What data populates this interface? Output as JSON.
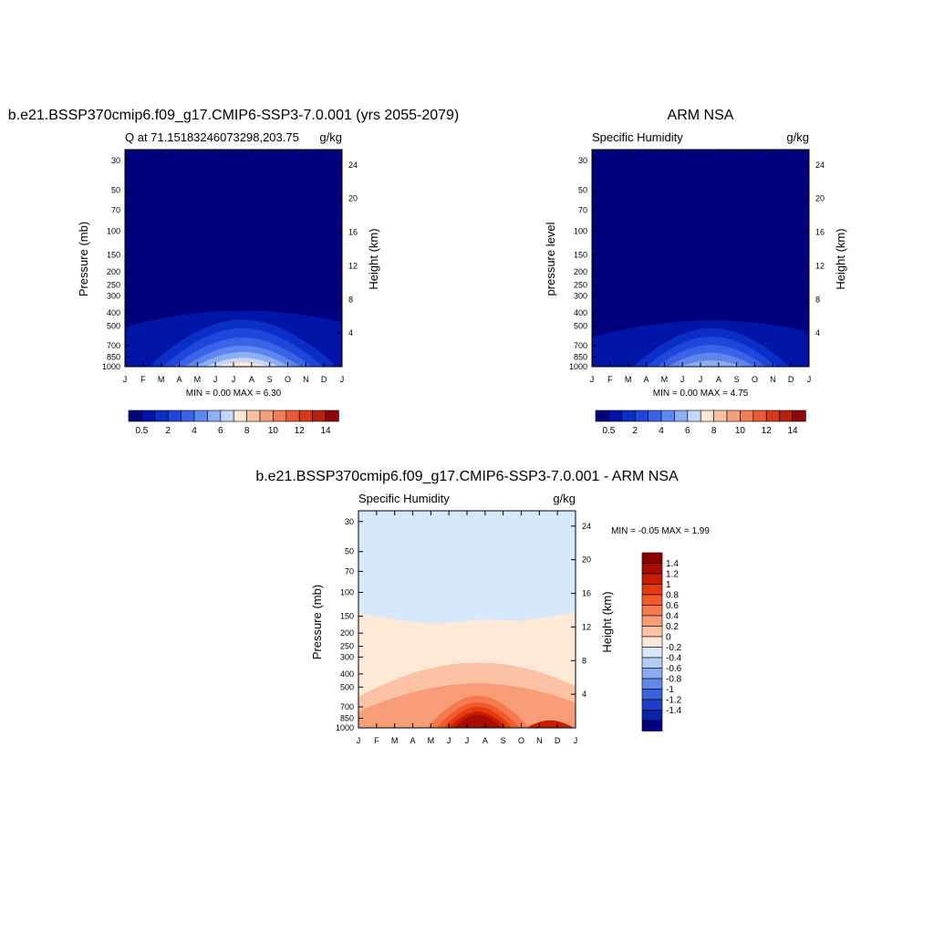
{
  "chart_data": [
    {
      "type": "heatmap",
      "panel": "top-left",
      "title": "b.e21.BSSP370cmip6.f09_g17.CMIP6-SSP3-7.0.001 (yrs 2055-2079)",
      "subtitle_left": "Q at 71.15183246073298,203.75",
      "subtitle_right": "g/kg",
      "ylabel": "Pressure (mb)",
      "ylabel_right": "Height (km)",
      "x_ticks": [
        "J",
        "F",
        "M",
        "A",
        "M",
        "J",
        "J",
        "A",
        "S",
        "O",
        "N",
        "D",
        "J"
      ],
      "y_ticks": [
        "30",
        "50",
        "70",
        "100",
        "150",
        "200",
        "250",
        "300",
        "400",
        "500",
        "700",
        "850",
        "1000"
      ],
      "y_right_ticks": [
        "24",
        "20",
        "16",
        "12",
        "8",
        "4"
      ],
      "ylim": [
        1000,
        25
      ],
      "minmax_text": "MIN =   0.00 MAX =   6.30",
      "min": 0.0,
      "max": 6.3,
      "colorbar_labels": [
        "0.5",
        "2",
        "4",
        "6",
        "8",
        "10",
        "12",
        "14"
      ],
      "colorbar_location": "bottom",
      "contour_levels": [
        0.5,
        1,
        1.5,
        2,
        3,
        4,
        5,
        6
      ],
      "contour_peak_pressure": [
        385,
        450,
        520,
        610,
        700,
        780,
        860,
        930
      ],
      "contour_peak_month": 6.5,
      "contour_halfwidth_months": [
        5.6,
        5.0,
        4.4,
        3.8,
        3.2,
        2.6,
        2.0,
        1.4
      ],
      "contour_base_pressure": [
        870,
        950,
        1000,
        1000,
        1000,
        1000,
        1000,
        1000
      ]
    },
    {
      "type": "heatmap",
      "panel": "top-right",
      "title": "ARM NSA",
      "subtitle_left": "Specific Humidity",
      "subtitle_right": "g/kg",
      "ylabel": "pressure level",
      "ylabel_right": "Height (km)",
      "x_ticks": [
        "J",
        "F",
        "M",
        "A",
        "M",
        "J",
        "J",
        "A",
        "S",
        "O",
        "N",
        "D",
        "J"
      ],
      "y_ticks": [
        "30",
        "50",
        "70",
        "100",
        "150",
        "200",
        "250",
        "300",
        "400",
        "500",
        "700",
        "850",
        "1000"
      ],
      "y_right_ticks": [
        "24",
        "20",
        "16",
        "12",
        "8",
        "4"
      ],
      "ylim": [
        1000,
        25
      ],
      "minmax_text": "MIN =   0.00 MAX =   4.75",
      "min": 0.0,
      "max": 4.75,
      "colorbar_labels": [
        "0.5",
        "2",
        "4",
        "6",
        "8",
        "10",
        "12",
        "14"
      ],
      "colorbar_location": "bottom",
      "contour_levels": [
        0.5,
        1,
        1.5,
        2,
        3,
        4
      ],
      "contour_peak_pressure": [
        455,
        520,
        600,
        690,
        790,
        900
      ],
      "contour_peak_month": 6.6,
      "contour_halfwidth_months": [
        5.0,
        4.3,
        3.6,
        3.0,
        2.4,
        1.7
      ],
      "contour_base_pressure": [
        960,
        1000,
        1000,
        1000,
        1000,
        1000
      ]
    },
    {
      "type": "heatmap",
      "panel": "bottom",
      "title": "b.e21.BSSP370cmip6.f09_g17.CMIP6-SSP3-7.0.001 - ARM NSA",
      "subtitle_left": "Specific Humidity",
      "subtitle_right": "g/kg",
      "ylabel": "Pressure (mb)",
      "ylabel_right": "Height (km)",
      "x_ticks": [
        "J",
        "F",
        "M",
        "A",
        "M",
        "J",
        "J",
        "A",
        "S",
        "O",
        "N",
        "D",
        "J"
      ],
      "y_ticks": [
        "30",
        "50",
        "70",
        "100",
        "150",
        "200",
        "250",
        "300",
        "400",
        "500",
        "700",
        "850",
        "1000"
      ],
      "y_right_ticks": [
        "24",
        "20",
        "16",
        "12",
        "8",
        "4"
      ],
      "ylim": [
        1000,
        25
      ],
      "minmax_text": "MIN = -0.05 MAX =   1.99",
      "min": -0.05,
      "max": 1.99,
      "colorbar_labels": [
        "1.4",
        "1.2",
        "1",
        "0.8",
        "0.6",
        "0.4",
        "0.2",
        "0",
        "-0.2",
        "-0.4",
        "-0.6",
        "-0.8",
        "-1",
        "-1.2",
        "-1.4"
      ],
      "colorbar_location": "right",
      "zero_line_pressure": [
        142,
        150,
        158,
        165,
        170,
        168,
        162,
        158,
        160,
        163,
        155,
        148,
        140
      ],
      "contour_levels": [
        0.2,
        0.4,
        0.6,
        0.8,
        1,
        1.2,
        1.4
      ],
      "contour_peak_pressure": [
        330,
        470,
        580,
        650,
        700,
        760,
        800
      ],
      "contour_peak_month": 6.6,
      "contour_halfwidth_months": [
        4.3,
        3.4,
        2.8,
        2.3,
        1.9,
        1.6,
        1.3
      ],
      "contour_base_pressure": [
        600,
        650,
        720,
        800,
        860,
        900,
        930
      ]
    }
  ],
  "colors": {
    "positive_scale": [
      "#00007f",
      "#0015a5",
      "#0b2ec8",
      "#1e46dc",
      "#3a63e8",
      "#5f86ee",
      "#8eaef4",
      "#c4d8f8",
      "#ffe5d2",
      "#fbc2a2",
      "#f6a07c",
      "#f07d58",
      "#e85a35",
      "#d8391c",
      "#b8200e",
      "#8c0707"
    ],
    "diff_scale_top_down": [
      "#8c0000",
      "#a80c00",
      "#c81e00",
      "#e53b10",
      "#f25a2a",
      "#f67a4e",
      "#f99d79",
      "#fcc2a5",
      "#fee8d6",
      "#d6e8fc",
      "#b0cdf6",
      "#88acee",
      "#6088e6",
      "#3a62dc",
      "#1e40c8",
      "#0a22a8",
      "#000080"
    ],
    "background_fill": "#00007f",
    "diff_background_upper": "#d6e8fc",
    "diff_background_lower": "#fee8d6"
  }
}
